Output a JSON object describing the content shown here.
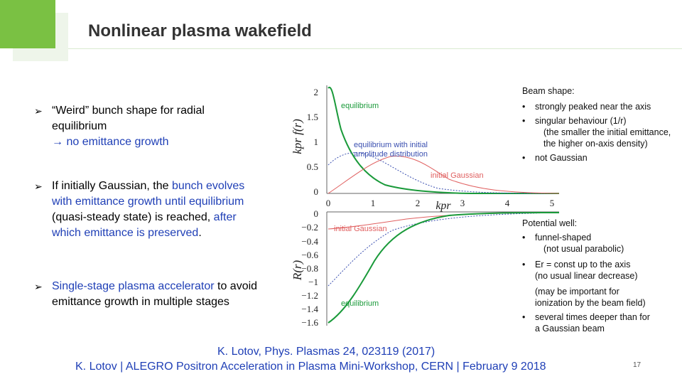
{
  "slide": {
    "title": "Nonlinear plasma wakefield",
    "page_number": "17"
  },
  "bullets": [
    {
      "parts": [
        "“Weird” bunch shape for radial equilibrium",
        "no emittance growth"
      ]
    },
    {
      "parts": [
        "If initially Gaussian, the ",
        "bunch evolves with emittance growth until equilibrium",
        " (quasi-steady state) is reached, ",
        "after which emittance is preserved",
        "."
      ]
    },
    {
      "parts": [
        "Single-stage plasma accelerator",
        " to avoid emittance growth in multiple stages"
      ]
    }
  ],
  "plot": {
    "top_ylabel": "kpr f(r)",
    "bottom_ylabel": "R(r)",
    "xlabel": "kpr",
    "top_yticks": [
      "2",
      "1.5",
      "1",
      "0.5",
      "0"
    ],
    "bottom_yticks": [
      "0",
      "−0.2",
      "−0.4",
      "−0.6",
      "−0.8",
      "−1",
      "−1.2",
      "−1.4",
      "−1.6"
    ],
    "xticks": [
      "0",
      "1",
      "2",
      "3",
      "4",
      "5"
    ],
    "labels": {
      "equilibrium_top": "equilibrium",
      "initial_amp": "equilibrium with initial amplitude distribution",
      "initial_gaussian_top": "initial Gaussian",
      "initial_gaussian_bottom": "initial Gaussian",
      "equilibrium_bottom": "equilibrium"
    },
    "colors": {
      "green": "#1a9a3a",
      "red": "#e06060",
      "blue": "#3a4fb0"
    }
  },
  "notes": {
    "beam_shape": {
      "head": "Beam shape:",
      "items": [
        "strongly peaked near the axis",
        "singular behaviour (1/r)",
        "(the smaller the initial emittance,",
        "the higher on-axis density)",
        "not Gaussian"
      ]
    },
    "potential_well": {
      "head": "Potential well:",
      "items": [
        "funnel-shaped",
        "(not usual parabolic)",
        "Er = const up to the axis",
        "(no usual linear decrease)",
        "(may be important for",
        "ionization by the beam field)",
        "several times deeper than for",
        "a Gaussian beam"
      ]
    }
  },
  "footer": {
    "ref_line1": "K. Lotov, Phys. Plasmas 24, 023119 (2017)",
    "ref_line2": "K. Lotov | ALEGRO Positron Acceleration in Plasma Mini-Workshop, CERN | February 9 2018"
  }
}
